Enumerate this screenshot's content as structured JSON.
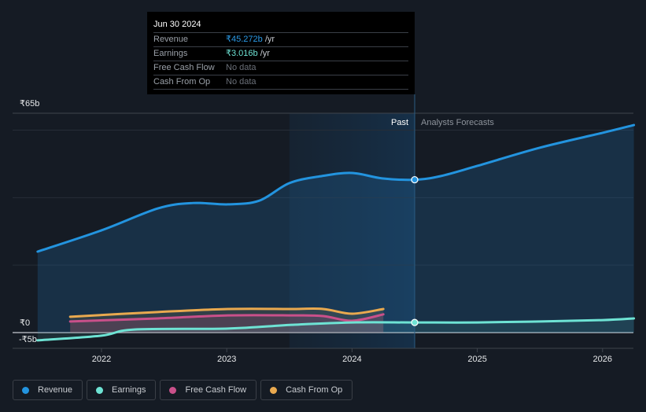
{
  "tooltip": {
    "date": "Jun 30 2024",
    "rows": [
      {
        "label": "Revenue",
        "value": "₹45.272b",
        "unit": " /yr"
      },
      {
        "label": "Earnings",
        "value": "₹3.016b",
        "unit": " /yr"
      },
      {
        "label": "Free Cash Flow",
        "value": "No data"
      },
      {
        "label": "Cash From Op",
        "value": "No data"
      }
    ]
  },
  "regions": {
    "past_label": "Past",
    "forecast_label": "Analysts Forecasts"
  },
  "legend": [
    {
      "label": "Revenue",
      "color": "#2394df"
    },
    {
      "label": "Earnings",
      "color": "#6ee3d4"
    },
    {
      "label": "Free Cash Flow",
      "color": "#c9508a"
    },
    {
      "label": "Cash From Op",
      "color": "#e9a94f"
    }
  ],
  "chart_data": {
    "type": "line",
    "title": "",
    "xlabel": "",
    "ylabel": "",
    "y_unit": "₹ billions",
    "ylim": [
      -5,
      65
    ],
    "xlim": [
      2021.4,
      2026.25
    ],
    "y_tick_labels": [
      {
        "value": 65,
        "label": "₹65b"
      },
      {
        "value": 0,
        "label": "₹0"
      },
      {
        "value": -5,
        "label": "-₹5b"
      }
    ],
    "x_tick_labels": [
      {
        "value": 2022,
        "label": "2022"
      },
      {
        "value": 2023,
        "label": "2023"
      },
      {
        "value": 2024,
        "label": "2024"
      },
      {
        "value": 2025,
        "label": "2025"
      },
      {
        "value": 2026,
        "label": "2026"
      }
    ],
    "gridlines": [
      20,
      40,
      60
    ],
    "past_shaded_from": 2023.5,
    "divider_at": 2024.5,
    "highlight_date": "Jun 30 2024",
    "series": [
      {
        "name": "Revenue",
        "color": "#2394df",
        "points": [
          [
            2021.49,
            24.0
          ],
          [
            2022.0,
            30.3
          ],
          [
            2022.45,
            36.8
          ],
          [
            2022.73,
            38.4
          ],
          [
            2023.01,
            38.0
          ],
          [
            2023.26,
            39.1
          ],
          [
            2023.5,
            44.3
          ],
          [
            2023.76,
            46.4
          ],
          [
            2024.0,
            47.3
          ],
          [
            2024.24,
            45.7
          ],
          [
            2024.5,
            45.3
          ],
          [
            2024.71,
            46.4
          ],
          [
            2025.0,
            49.4
          ],
          [
            2025.5,
            54.8
          ],
          [
            2026.0,
            59.2
          ],
          [
            2026.25,
            61.5
          ]
        ]
      },
      {
        "name": "Earnings",
        "color": "#6ee3d4",
        "points": [
          [
            2021.49,
            -2.3
          ],
          [
            2022.0,
            -0.9
          ],
          [
            2022.26,
            0.9
          ],
          [
            2023.01,
            1.2
          ],
          [
            2023.52,
            2.3
          ],
          [
            2024.0,
            3.0
          ],
          [
            2024.5,
            3.0
          ],
          [
            2025.0,
            3.0
          ],
          [
            2025.5,
            3.3
          ],
          [
            2026.0,
            3.7
          ],
          [
            2026.25,
            4.2
          ]
        ]
      },
      {
        "name": "Free Cash Flow",
        "color": "#c9508a",
        "points": [
          [
            2021.75,
            3.3
          ],
          [
            2022.45,
            4.2
          ],
          [
            2023.01,
            5.1
          ],
          [
            2023.52,
            5.1
          ],
          [
            2023.77,
            4.9
          ],
          [
            2024.0,
            3.5
          ],
          [
            2024.25,
            5.4
          ]
        ]
      },
      {
        "name": "Cash From Op",
        "color": "#e9a94f",
        "points": [
          [
            2021.75,
            4.7
          ],
          [
            2022.45,
            6.1
          ],
          [
            2023.01,
            7.0
          ],
          [
            2023.52,
            7.0
          ],
          [
            2023.77,
            7.0
          ],
          [
            2024.0,
            5.6
          ],
          [
            2024.25,
            7.0
          ]
        ]
      }
    ]
  }
}
